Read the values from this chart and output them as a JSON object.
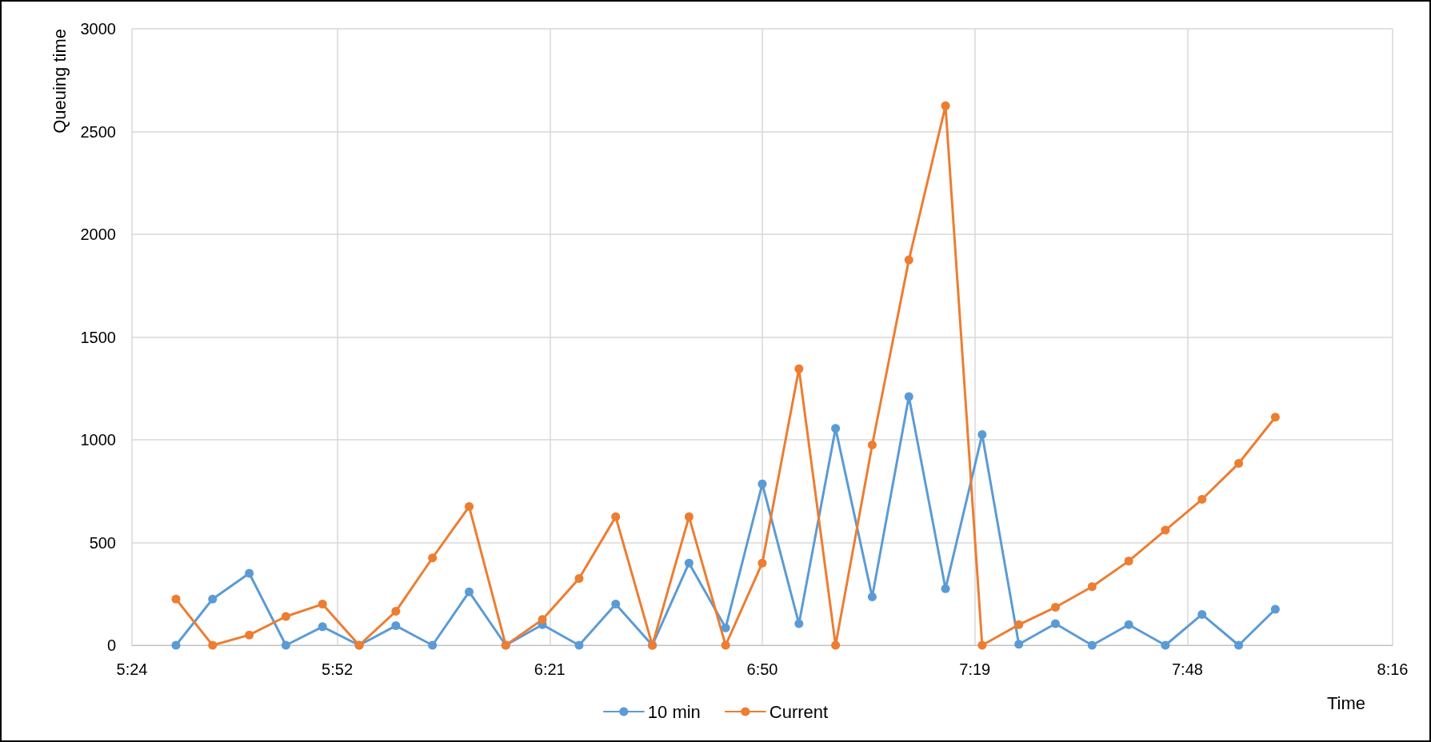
{
  "chart_data": {
    "type": "line",
    "xlabel": "Time",
    "ylabel": "Queuing time",
    "x": [
      5.5,
      5.5833,
      5.6667,
      5.75,
      5.8333,
      5.9167,
      6.0,
      6.0833,
      6.1667,
      6.25,
      6.3333,
      6.4167,
      6.5,
      6.5833,
      6.6667,
      6.75,
      6.8333,
      6.9167,
      7.0,
      7.0833,
      7.1667,
      7.25,
      7.3333,
      7.4167,
      7.5,
      7.5833,
      7.6667,
      7.75,
      7.8333,
      7.9167,
      8.0
    ],
    "series": [
      {
        "name": "10 min",
        "color": "#5b9bd5",
        "values": [
          0,
          225,
          350,
          0,
          90,
          0,
          95,
          0,
          260,
          0,
          100,
          0,
          200,
          0,
          400,
          85,
          785,
          105,
          1055,
          235,
          1210,
          275,
          1025,
          5,
          105,
          0,
          100,
          0,
          150,
          0,
          175
        ]
      },
      {
        "name": "Current",
        "color": "#ed7d31",
        "values": [
          225,
          0,
          50,
          140,
          200,
          0,
          165,
          425,
          675,
          0,
          125,
          325,
          625,
          0,
          625,
          0,
          400,
          1345,
          0,
          975,
          1875,
          2625,
          0,
          100,
          185,
          285,
          410,
          560,
          710,
          885,
          1110
        ]
      }
    ],
    "xlim": [
      5.4,
      8.2667
    ],
    "xticks": [
      {
        "value": 5.4,
        "label": "5:24"
      },
      {
        "value": 5.8667,
        "label": "5:52"
      },
      {
        "value": 6.35,
        "label": "6:21"
      },
      {
        "value": 6.8333,
        "label": "6:50"
      },
      {
        "value": 7.3167,
        "label": "7:19"
      },
      {
        "value": 7.8,
        "label": "7:48"
      },
      {
        "value": 8.2667,
        "label": "8:16"
      }
    ],
    "ylim": [
      0,
      3000
    ],
    "yticks": [
      0,
      500,
      1000,
      1500,
      2000,
      2500,
      3000
    ],
    "grid": true,
    "legend": "bottom",
    "marker": "circle",
    "line_style": "solid"
  }
}
